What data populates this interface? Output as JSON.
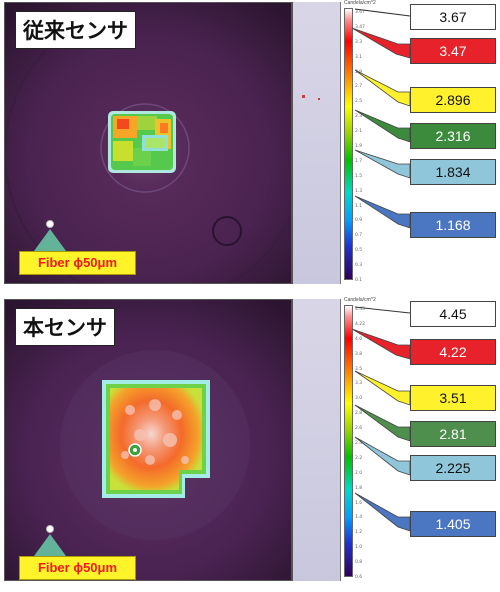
{
  "panels": [
    {
      "id": "conventional",
      "title": "従来センサ",
      "fiber_label": "Fiber ϕ50μm",
      "colorbar_title": "Candela/cm^2",
      "colorbar_ticks": [
        "3.67",
        "3.47",
        "3.3",
        "3.1",
        "2.9",
        "2.7",
        "2.5",
        "2.3",
        "2.1",
        "1.9",
        "1.7",
        "1.5",
        "1.3",
        "1.1",
        "0.9",
        "0.7",
        "0.5",
        "0.3",
        "0.1"
      ],
      "callouts": [
        {
          "value": "3.67",
          "fill": "#ffffff",
          "text_color": "#111111"
        },
        {
          "value": "3.47",
          "fill": "#e8222a",
          "text_color": "#ffffff"
        },
        {
          "value": "2.896",
          "fill": "#fff22c",
          "text_color": "#111111"
        },
        {
          "value": "2.316",
          "fill": "#3c8a3c",
          "text_color": "#ffffff"
        },
        {
          "value": "1.834",
          "fill": "#8fc6d9",
          "text_color": "#111111"
        },
        {
          "value": "1.168",
          "fill": "#4b76c1",
          "text_color": "#ffffff"
        }
      ]
    },
    {
      "id": "this-sensor",
      "title": "本センサ",
      "fiber_label": "Fiber ϕ50μm",
      "colorbar_title": "Candela/cm^2",
      "colorbar_ticks": [
        "4.45",
        "4.22",
        "4.0",
        "3.8",
        "3.5",
        "3.3",
        "3.0",
        "2.8",
        "2.6",
        "2.4",
        "2.2",
        "2.0",
        "1.8",
        "1.6",
        "1.4",
        "1.2",
        "1.0",
        "0.8",
        "0.6"
      ],
      "callouts": [
        {
          "value": "4.45",
          "fill": "#ffffff",
          "text_color": "#111111"
        },
        {
          "value": "4.22",
          "fill": "#e8222a",
          "text_color": "#ffffff"
        },
        {
          "value": "3.51",
          "fill": "#fff22c",
          "text_color": "#111111"
        },
        {
          "value": "2.81",
          "fill": "#4e8f4e",
          "text_color": "#ffffff"
        },
        {
          "value": "2.225",
          "fill": "#8fc6d9",
          "text_color": "#111111"
        },
        {
          "value": "1.405",
          "fill": "#4b76c1",
          "text_color": "#ffffff"
        }
      ]
    }
  ]
}
